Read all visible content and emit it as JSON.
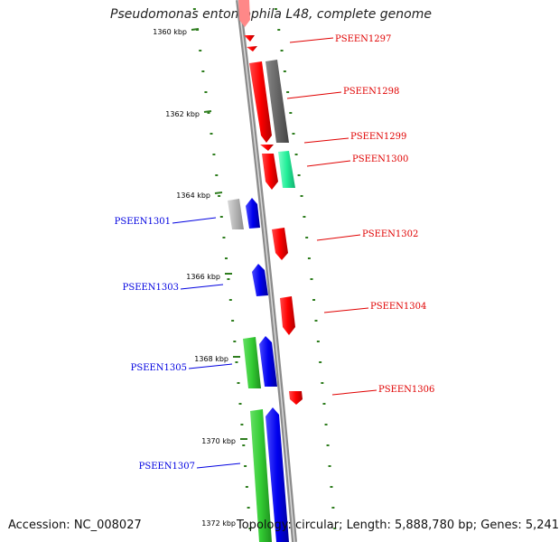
{
  "title": "Pseudomonas entomophila L48, complete genome",
  "footer": {
    "accession": "Accession: NC_008027",
    "summary": "Topology: circular; Length: 5,888,780 bp; Genes: 5,241"
  },
  "colors": {
    "forward": "#e00000",
    "reverse": "#0000e0",
    "green": "#22bb22",
    "dark_gray": "#666666",
    "light_gray": "#b4b4b4",
    "teal": "#22ee99",
    "tick": "#2e7d1e",
    "backbone": "#8c8c8c"
  },
  "scale_ticks": [
    "1360 kbp",
    "1362 kbp",
    "1364 kbp",
    "1366 kbp",
    "1368 kbp",
    "1370 kbp",
    "1372 kbp"
  ],
  "genes_right": [
    "PSEEN1297",
    "PSEEN1298",
    "PSEEN1299",
    "PSEEN1300",
    "PSEEN1302",
    "PSEEN1304",
    "PSEEN1306"
  ],
  "genes_left": [
    "PSEEN1301",
    "PSEEN1303",
    "PSEEN1305",
    "PSEEN1307"
  ]
}
